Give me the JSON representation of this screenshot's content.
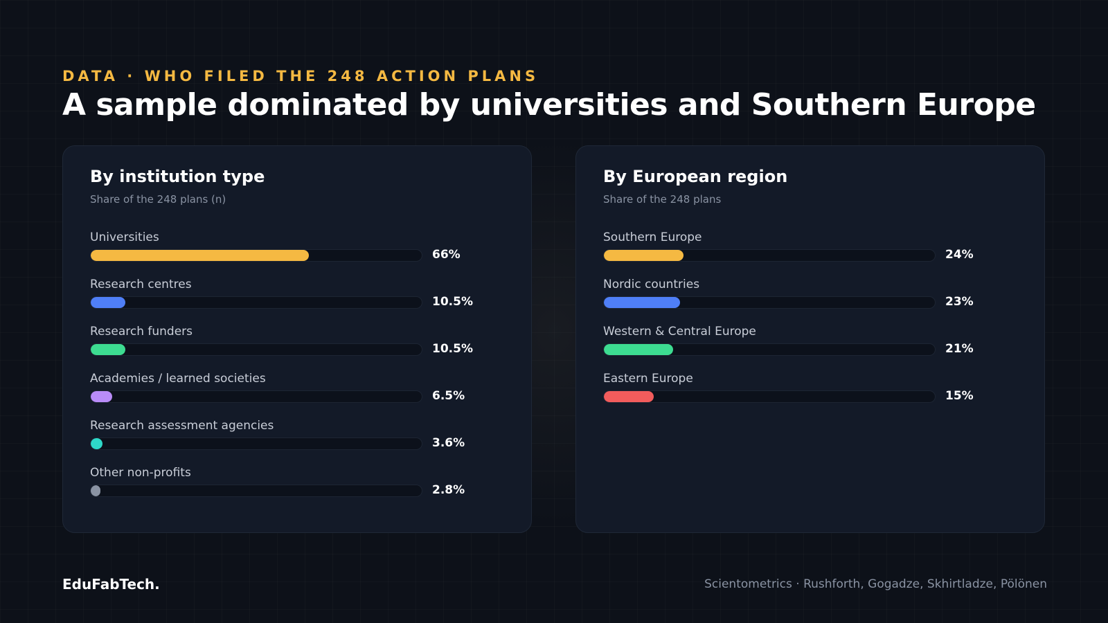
{
  "header": {
    "eyebrow": "DATA · WHO FILED THE 248 ACTION PLANS",
    "title": "A sample dominated by universities and Southern Europe"
  },
  "chart_data": [
    {
      "type": "bar",
      "orientation": "horizontal",
      "title": "By institution type",
      "subtitle": "Share of the 248 plans (n)",
      "categories": [
        "Universities",
        "Research centres",
        "Research funders",
        "Academies / learned societies",
        "Research assessment agencies",
        "Other non-profits"
      ],
      "values": [
        66,
        10.5,
        10.5,
        6.5,
        3.6,
        2.8
      ],
      "value_labels": [
        "66%",
        "10.5%",
        "10.5%",
        "6.5%",
        "3.6%",
        "2.8%"
      ],
      "colors": [
        "#f5b942",
        "#4f7ff7",
        "#3ddc91",
        "#b98cf8",
        "#2ed8c8",
        "#8a93a3"
      ],
      "xlim": [
        0,
        100
      ],
      "unit": "%"
    },
    {
      "type": "bar",
      "orientation": "horizontal",
      "title": "By European region",
      "subtitle": "Share of the 248 plans",
      "categories": [
        "Southern Europe",
        "Nordic countries",
        "Western & Central Europe",
        "Eastern Europe"
      ],
      "values": [
        24,
        23,
        21,
        15
      ],
      "value_labels": [
        "24%",
        "23%",
        "21%",
        "15%"
      ],
      "colors": [
        "#f5b942",
        "#4f7ff7",
        "#3ddc91",
        "#f25c5c"
      ],
      "xlim": [
        0,
        100
      ],
      "unit": "%"
    }
  ],
  "footer": {
    "brand": "EduFabTech.",
    "credit": "Scientometrics · Rushforth, Gogadze, Skhirtladze, Pölönen"
  }
}
